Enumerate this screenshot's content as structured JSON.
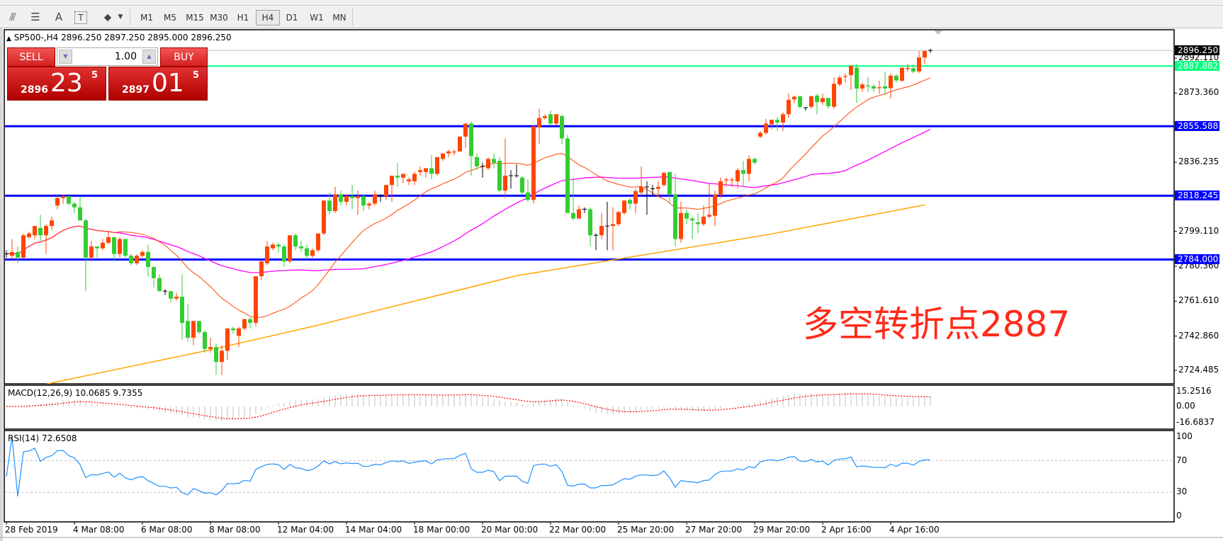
{
  "toolbar": {
    "icons": [
      "fibonacci-expansion-icon",
      "fibonacci-fan-icon",
      "text-icon",
      "text-label-icon",
      "arrows-icon"
    ],
    "icon_glyphs": [
      "⫻",
      "☰",
      "A",
      "T",
      "⬥"
    ],
    "timeframes": [
      "M1",
      "M5",
      "M15",
      "M30",
      "H1",
      "H4",
      "D1",
      "W1",
      "MN"
    ],
    "selected_timeframe": "H4"
  },
  "chart": {
    "title": "SP500-,H4  2896.250 2897.250 2895.000 2896.250",
    "annotation": "多空转折点2887",
    "colors": {
      "up": "#ff4500",
      "down": "#32cd32",
      "doji": "#000000",
      "ma_fast": "#ff4500",
      "ma_mid": "#ff00ff",
      "ma_slow": "#ffa500",
      "hline": "#0000ff",
      "green_line": "#00ff7f",
      "bid_line": "#c0c0c0"
    }
  },
  "trade_panel": {
    "sell_label": "SELL",
    "buy_label": "BUY",
    "volume": "1.00",
    "sell_price": {
      "prefix": "2896",
      "big": "23",
      "sup": "5"
    },
    "buy_price": {
      "prefix": "2897",
      "big": "01",
      "sup": "5"
    }
  },
  "price_axis": {
    "ticks": [
      "2892.110",
      "2873.360",
      "2836.235",
      "2799.110",
      "2780.360",
      "2761.610",
      "2742.860",
      "2724.485"
    ],
    "current_price": "2896.250",
    "hlines": [
      {
        "value": 2887.882,
        "label": "2887.882",
        "color": "#00ff7f"
      },
      {
        "value": 2855.588,
        "label": "2855.588",
        "color": "#0000ff"
      },
      {
        "value": 2818.245,
        "label": "2818.245",
        "color": "#0000ff"
      },
      {
        "value": 2784.0,
        "label": "2784.000",
        "color": "#0000ff"
      }
    ]
  },
  "macd": {
    "label": "MACD(12,26,9) 10.0685 9.7355",
    "ticks": [
      "15.2516",
      "0.00",
      "-16.6837"
    ]
  },
  "rsi": {
    "label": "RSI(14) 72.6508",
    "ticks": [
      "100",
      "70",
      "30",
      "0"
    ]
  },
  "time_axis": [
    "28 Feb 2019",
    "4 Mar 08:00",
    "6 Mar 08:00",
    "8 Mar 08:00",
    "12 Mar 04:00",
    "14 Mar 04:00",
    "18 Mar 00:00",
    "20 Mar 00:00",
    "22 Mar 00:00",
    "25 Mar 20:00",
    "27 Mar 20:00",
    "29 Mar 20:00",
    "2 Apr 16:00",
    "4 Apr 16:00"
  ],
  "chart_data": {
    "type": "candlestick",
    "symbol": "SP500-",
    "timeframe": "H4",
    "ylim": [
      2716,
      2906
    ],
    "ohlc": [
      [
        2787,
        2789,
        2785,
        2787
      ],
      [
        2786,
        2795,
        2784,
        2788
      ],
      [
        2788,
        2791,
        2782,
        2785
      ],
      [
        2785,
        2798,
        2784,
        2797
      ],
      [
        2796,
        2799,
        2795,
        2798
      ],
      [
        2797,
        2802,
        2795,
        2802
      ],
      [
        2801,
        2808,
        2794,
        2797
      ],
      [
        2797,
        2803,
        2787,
        2802
      ],
      [
        2802,
        2807,
        2800,
        2805
      ],
      [
        2813,
        2819,
        2811,
        2817
      ],
      [
        2817,
        2819,
        2814,
        2818
      ],
      [
        2818,
        2818,
        2813,
        2814
      ],
      [
        2814,
        2815,
        2809,
        2812
      ],
      [
        2812,
        2818,
        2805,
        2805
      ],
      [
        2805,
        2806,
        2767,
        2785
      ],
      [
        2785,
        2794,
        2783,
        2791
      ],
      [
        2791,
        2791,
        2785,
        2790
      ],
      [
        2790,
        2795,
        2789,
        2793
      ],
      [
        2793,
        2799,
        2792,
        2796
      ],
      [
        2796,
        2796,
        2783,
        2787
      ],
      [
        2787,
        2796,
        2785,
        2795
      ],
      [
        2795,
        2795,
        2785,
        2786
      ],
      [
        2786,
        2787,
        2781,
        2782
      ],
      [
        2782,
        2787,
        2781,
        2786
      ],
      [
        2786,
        2789,
        2785,
        2788
      ],
      [
        2788,
        2792,
        2775,
        2780
      ],
      [
        2780,
        2780,
        2769,
        2774
      ],
      [
        2774,
        2776,
        2767,
        2767
      ],
      [
        2767,
        2768,
        2765,
        2767
      ],
      [
        2767,
        2767,
        2761,
        2763
      ],
      [
        2763,
        2766,
        2762,
        2764
      ],
      [
        2764,
        2776,
        2741,
        2750
      ],
      [
        2751,
        2760,
        2740,
        2742
      ],
      [
        2742,
        2751,
        2738,
        2751
      ],
      [
        2751,
        2751,
        2744,
        2745
      ],
      [
        2745,
        2746,
        2734,
        2736
      ],
      [
        2736,
        2742,
        2734,
        2737
      ],
      [
        2737,
        2739,
        2722,
        2729
      ],
      [
        2729,
        2738,
        2722,
        2735
      ],
      [
        2735,
        2747,
        2730,
        2747
      ],
      [
        2747,
        2748,
        2744,
        2746
      ],
      [
        2743,
        2748,
        2737,
        2747
      ],
      [
        2747,
        2752,
        2746,
        2752
      ],
      [
        2752,
        2753,
        2747,
        2750
      ],
      [
        2750,
        2775,
        2748,
        2775
      ],
      [
        2775,
        2784,
        2773,
        2783
      ],
      [
        2782,
        2794,
        2781,
        2791
      ],
      [
        2790,
        2793,
        2789,
        2792
      ],
      [
        2792,
        2793,
        2788,
        2791
      ],
      [
        2791,
        2792,
        2780,
        2783
      ],
      [
        2783,
        2797,
        2782,
        2797
      ],
      [
        2797,
        2798,
        2789,
        2791
      ],
      [
        2791,
        2794,
        2788,
        2790
      ],
      [
        2790,
        2792,
        2784,
        2786
      ],
      [
        2786,
        2790,
        2785,
        2789
      ],
      [
        2789,
        2798,
        2788,
        2798
      ],
      [
        2798,
        2816,
        2797,
        2815.6
      ],
      [
        2815.6,
        2820,
        2808,
        2810
      ],
      [
        2810,
        2823,
        2809,
        2819
      ],
      [
        2819,
        2821,
        2813,
        2815
      ],
      [
        2815,
        2819,
        2813,
        2818
      ],
      [
        2818,
        2824,
        2811,
        2817
      ],
      [
        2817,
        2821,
        2808,
        2818
      ],
      [
        2818,
        2819,
        2810,
        2813
      ],
      [
        2813,
        2815,
        2811,
        2814
      ],
      [
        2814,
        2821,
        2813,
        2819
      ],
      [
        2818,
        2819,
        2815,
        2818
      ],
      [
        2818,
        2824,
        2816,
        2824
      ],
      [
        2824,
        2829,
        2815,
        2829
      ],
      [
        2829,
        2836,
        2823,
        2828
      ],
      [
        2828,
        2830,
        2825,
        2830
      ],
      [
        2826,
        2828,
        2824,
        2827
      ],
      [
        2826,
        2831,
        2824,
        2830
      ],
      [
        2831,
        2834,
        2829,
        2832
      ],
      [
        2831,
        2833,
        2828,
        2833
      ],
      [
        2833,
        2840,
        2827,
        2830
      ],
      [
        2830,
        2839,
        2829,
        2839
      ],
      [
        2838,
        2841,
        2837,
        2841
      ],
      [
        2841,
        2843,
        2839,
        2842
      ],
      [
        2841.5,
        2843,
        2840,
        2842
      ],
      [
        2842,
        2850,
        2842,
        2850
      ],
      [
        2850,
        2857,
        2844,
        2857
      ],
      [
        2857,
        2858,
        2829,
        2839.5
      ],
      [
        2839,
        2841,
        2832,
        2834
      ],
      [
        2834,
        2836,
        2828,
        2834
      ],
      [
        2833,
        2839,
        2832,
        2838
      ],
      [
        2838,
        2841,
        2833,
        2836
      ],
      [
        2837,
        2839,
        2820,
        2821
      ],
      [
        2821,
        2849,
        2817,
        2829
      ],
      [
        2829,
        2832,
        2822,
        2829
      ],
      [
        2829,
        2835,
        2828,
        2829
      ],
      [
        2828,
        2829,
        2819,
        2820
      ],
      [
        2820,
        2827,
        2815,
        2816
      ],
      [
        2816,
        2856,
        2814,
        2855.5
      ],
      [
        2855,
        2865,
        2846,
        2860
      ],
      [
        2860,
        2862,
        2859,
        2861
      ],
      [
        2862,
        2864,
        2856,
        2857
      ],
      [
        2857,
        2862,
        2856,
        2862
      ],
      [
        2861,
        2862,
        2846,
        2849
      ],
      [
        2849,
        2851,
        2809,
        2809
      ],
      [
        2809,
        2828,
        2805,
        2806
      ],
      [
        2806,
        2813,
        2806,
        2811
      ],
      [
        2811,
        2812,
        2809,
        2811
      ],
      [
        2811,
        2812,
        2791,
        2797
      ],
      [
        2797,
        2798,
        2789,
        2797
      ],
      [
        2797,
        2809,
        2795,
        2802
      ],
      [
        2802,
        2815,
        2789,
        2802
      ],
      [
        2802,
        2812,
        2789,
        2803
      ],
      [
        2803,
        2810,
        2802,
        2809.5
      ],
      [
        2809,
        2816,
        2808,
        2815.6
      ],
      [
        2816,
        2817,
        2811,
        2814
      ],
      [
        2814,
        2822,
        2809,
        2820.7
      ],
      [
        2820,
        2834,
        2818,
        2823
      ],
      [
        2823,
        2826,
        2808,
        2823
      ],
      [
        2822,
        2824,
        2818,
        2822
      ],
      [
        2822,
        2826,
        2818,
        2823
      ],
      [
        2824,
        2831,
        2823,
        2830.5
      ],
      [
        2831,
        2831,
        2814,
        2819
      ],
      [
        2819,
        2830,
        2791,
        2795
      ],
      [
        2795,
        2815,
        2793,
        2809
      ],
      [
        2809,
        2811,
        2803,
        2806
      ],
      [
        2806,
        2807,
        2795,
        2805
      ],
      [
        2804,
        2809,
        2798,
        2803
      ],
      [
        2803,
        2813,
        2802,
        2807
      ],
      [
        2807,
        2825,
        2806,
        2808
      ],
      [
        2807.5,
        2821,
        2802,
        2819
      ],
      [
        2819,
        2828,
        2817,
        2826
      ],
      [
        2826.5,
        2828,
        2823,
        2827
      ],
      [
        2826.5,
        2828,
        2823,
        2827
      ],
      [
        2826,
        2833,
        2822,
        2832
      ],
      [
        2832,
        2837,
        2823,
        2830
      ],
      [
        2830,
        2840,
        2826,
        2838
      ],
      [
        2838,
        2839,
        2835,
        2836
      ],
      [
        2850,
        2853,
        2849,
        2852
      ],
      [
        2852,
        2859.5,
        2851,
        2857
      ],
      [
        2856.5,
        2859,
        2854,
        2859
      ],
      [
        2859,
        2860.5,
        2853,
        2857.5
      ],
      [
        2857.5,
        2863,
        2853,
        2862
      ],
      [
        2862,
        2873,
        2860,
        2869.7
      ],
      [
        2870,
        2872,
        2868,
        2871.4
      ],
      [
        2871.6,
        2872,
        2865,
        2866
      ],
      [
        2865.5,
        2866,
        2864,
        2865.5
      ],
      [
        2866,
        2872,
        2865,
        2871.6
      ],
      [
        2872,
        2873,
        2862,
        2868.5
      ],
      [
        2868.5,
        2873,
        2867,
        2870.7
      ],
      [
        2870.7,
        2871,
        2865,
        2866.3
      ],
      [
        2866,
        2882,
        2865,
        2878.3
      ],
      [
        2878,
        2883,
        2877,
        2881.7
      ],
      [
        2882,
        2884,
        2879,
        2882.5
      ],
      [
        2883,
        2888,
        2875,
        2888
      ],
      [
        2887,
        2889,
        2868,
        2875.8
      ],
      [
        2875.8,
        2879,
        2874,
        2878
      ],
      [
        2877.5,
        2882,
        2874,
        2877
      ],
      [
        2877,
        2878,
        2874,
        2875.8
      ],
      [
        2876,
        2880,
        2873,
        2876.5
      ],
      [
        2877,
        2885,
        2873,
        2875.8
      ],
      [
        2876,
        2884,
        2870.5,
        2882.7
      ],
      [
        2882.7,
        2883.5,
        2879,
        2880.2
      ],
      [
        2880,
        2887,
        2879.5,
        2887
      ],
      [
        2886.2,
        2889,
        2885,
        2886.8
      ],
      [
        2886.7,
        2889,
        2884,
        2884.9
      ],
      [
        2885,
        2896,
        2884,
        2892.5
      ],
      [
        2892.5,
        2896,
        2889,
        2896
      ],
      [
        2896.25,
        2897.25,
        2895,
        2896.25
      ]
    ],
    "ma_slow_points": [
      {
        "bar": 7,
        "value": 2717
      },
      {
        "bar": 9,
        "value": 2718.4
      },
      {
        "bar": 36,
        "value": 2735.5
      },
      {
        "bar": 55,
        "value": 2748.8
      },
      {
        "bar": 90,
        "value": 2775.3
      },
      {
        "bar": 110,
        "value": 2785.3
      },
      {
        "bar": 134,
        "value": 2797.2
      },
      {
        "bar": 162,
        "value": 2813.3
      }
    ],
    "ma_fast_period": 20,
    "ma_mid_period": 50,
    "macd_params": [
      12,
      26,
      9
    ],
    "macd_range": [
      -16.6837,
      15.2516
    ],
    "rsi_period": 14,
    "rsi_levels": [
      30,
      70
    ]
  }
}
